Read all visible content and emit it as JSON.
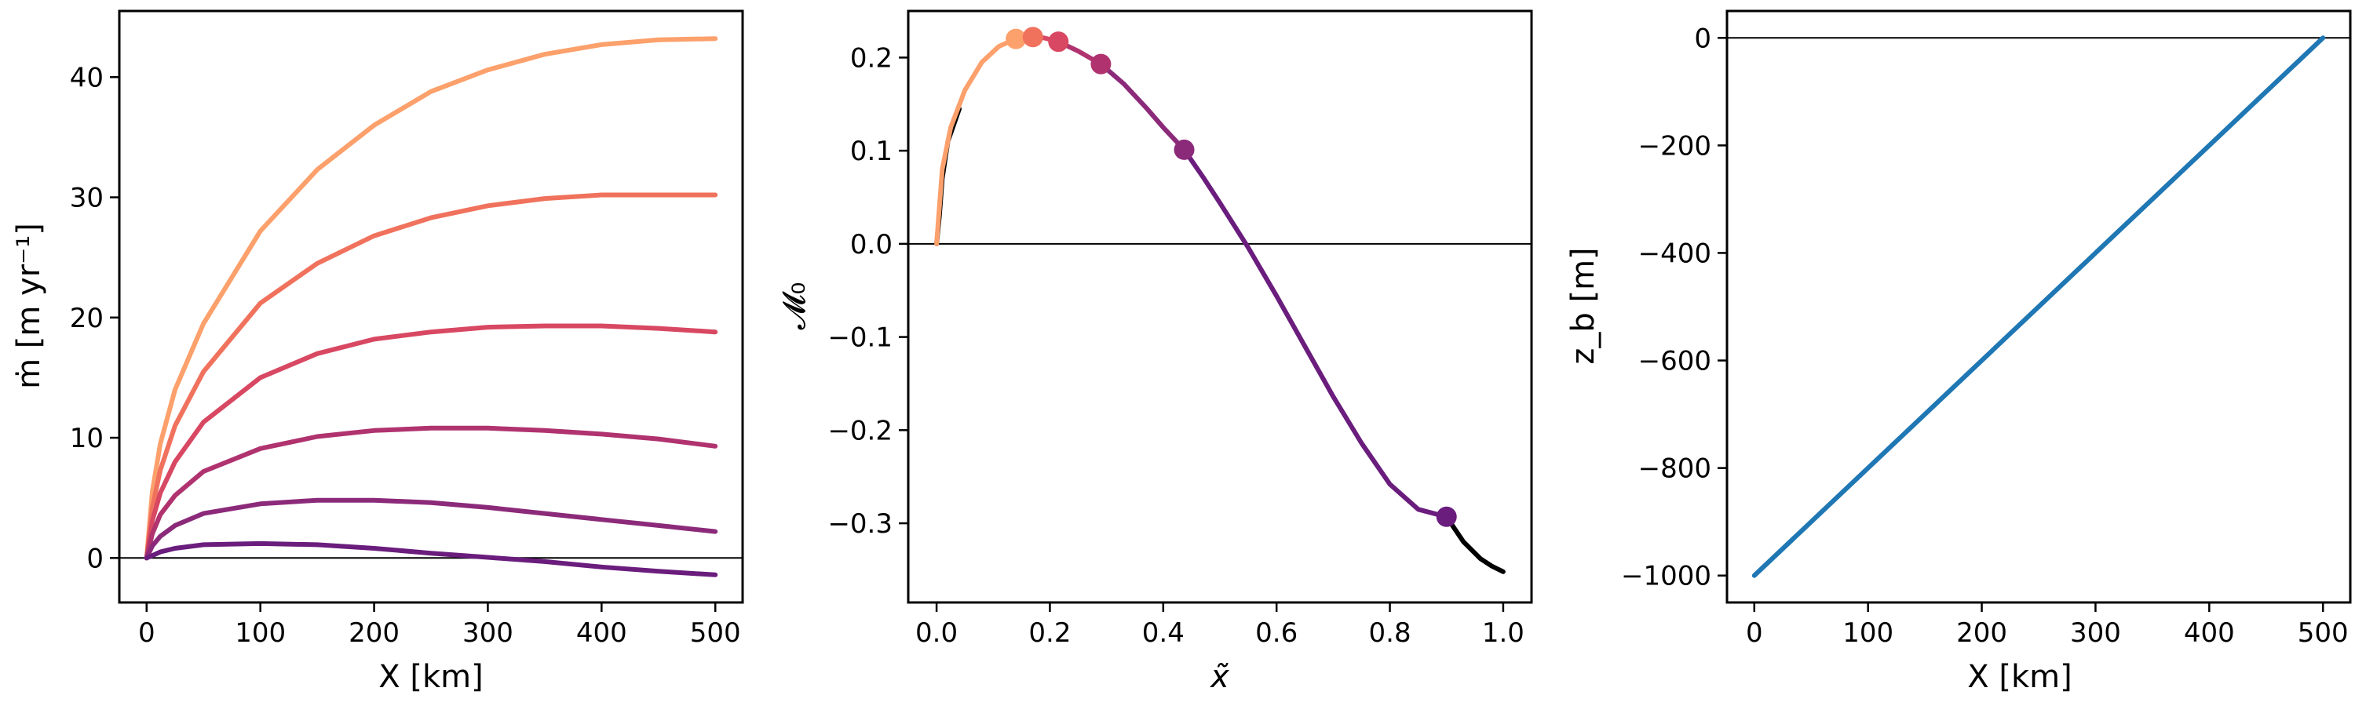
{
  "figure": {
    "background": "#ffffff"
  },
  "chart_data": [
    {
      "type": "line",
      "xlabel": "X [km]",
      "ylabel": "ṁ  [m yr⁻¹]",
      "xlim": [
        -24,
        524
      ],
      "ylim": [
        -3.7,
        45.5
      ],
      "xticks": [
        0,
        100,
        200,
        300,
        400,
        500
      ],
      "yticks": [
        0,
        10,
        20,
        30,
        40
      ],
      "xtick_labels": [
        "0",
        "100",
        "200",
        "300",
        "400",
        "500"
      ],
      "ytick_labels": [
        "0",
        "10",
        "20",
        "30",
        "40"
      ],
      "grid": false,
      "reference_lines": [
        {
          "axis": "y",
          "value": 0,
          "color": "#000000"
        }
      ],
      "series": [
        {
          "color": "#fca06c",
          "x": [
            0,
            5,
            12,
            25,
            50,
            100,
            150,
            200,
            250,
            300,
            350,
            400,
            450,
            500
          ],
          "y": [
            0,
            5.5,
            9.5,
            14,
            19.5,
            27.2,
            32.3,
            36,
            38.8,
            40.6,
            41.9,
            42.7,
            43.1,
            43.2
          ]
        },
        {
          "color": "#f0725d",
          "x": [
            0,
            5,
            12,
            25,
            50,
            100,
            150,
            200,
            250,
            300,
            350,
            400,
            450,
            500
          ],
          "y": [
            0,
            4.2,
            7.3,
            11,
            15.5,
            21.2,
            24.5,
            26.8,
            28.3,
            29.3,
            29.9,
            30.2,
            30.2,
            30.2
          ]
        },
        {
          "color": "#d84862",
          "x": [
            0,
            5,
            12,
            25,
            50,
            100,
            150,
            200,
            250,
            300,
            350,
            400,
            450,
            500
          ],
          "y": [
            0,
            3.1,
            5.4,
            8,
            11.3,
            15,
            17,
            18.2,
            18.8,
            19.2,
            19.3,
            19.3,
            19.1,
            18.8
          ]
        },
        {
          "color": "#b0336f",
          "x": [
            0,
            5,
            12,
            25,
            50,
            100,
            150,
            200,
            250,
            300,
            350,
            400,
            450,
            500
          ],
          "y": [
            0,
            2,
            3.6,
            5.2,
            7.2,
            9.1,
            10.1,
            10.6,
            10.8,
            10.8,
            10.6,
            10.3,
            9.9,
            9.3
          ]
        },
        {
          "color": "#8c2a7a",
          "x": [
            0,
            5,
            12,
            25,
            50,
            100,
            150,
            200,
            250,
            300,
            350,
            400,
            450,
            500
          ],
          "y": [
            0,
            1,
            1.8,
            2.7,
            3.7,
            4.5,
            4.8,
            4.8,
            4.6,
            4.2,
            3.7,
            3.2,
            2.7,
            2.2
          ]
        },
        {
          "color": "#6a1d7d",
          "x": [
            0,
            5,
            12,
            25,
            50,
            100,
            150,
            200,
            250,
            300,
            350,
            400,
            450,
            500
          ],
          "y": [
            0,
            0.2,
            0.5,
            0.8,
            1.1,
            1.2,
            1.1,
            0.8,
            0.4,
            0.05,
            -0.3,
            -0.75,
            -1.1,
            -1.4
          ]
        }
      ]
    },
    {
      "type": "line",
      "xlabel": "x̃",
      "ylabel": "𝓜₀",
      "xlim": [
        -0.05,
        1.05
      ],
      "ylim": [
        -0.385,
        0.25
      ],
      "xticks": [
        0.0,
        0.2,
        0.4,
        0.6,
        0.8,
        1.0
      ],
      "yticks": [
        -0.3,
        -0.2,
        -0.1,
        0.0,
        0.1,
        0.2
      ],
      "xtick_labels": [
        "0.0",
        "0.2",
        "0.4",
        "0.6",
        "0.8",
        "1.0"
      ],
      "ytick_labels": [
        "−0.3",
        "−0.2",
        "−0.1",
        "0.0",
        "0.1",
        "0.2"
      ],
      "grid": false,
      "reference_lines": [
        {
          "axis": "y",
          "value": 0,
          "color": "#000000"
        }
      ],
      "series": [
        {
          "color": "#000000",
          "x": [
            0,
            0.005,
            0.01,
            0.02,
            0.04
          ],
          "y": [
            0,
            0.03,
            0.07,
            0.11,
            0.145
          ]
        },
        {
          "color": "#fca06c",
          "x": [
            0,
            0.01,
            0.025,
            0.05,
            0.08,
            0.11,
            0.14
          ],
          "y": [
            0,
            0.08,
            0.125,
            0.165,
            0.195,
            0.212,
            0.22
          ]
        },
        {
          "color": "#f0725d",
          "x": [
            0.14,
            0.155,
            0.17
          ],
          "y": [
            0.22,
            0.222,
            0.222
          ]
        },
        {
          "color": "#d84862",
          "x": [
            0.17,
            0.19,
            0.215
          ],
          "y": [
            0.222,
            0.221,
            0.217
          ]
        },
        {
          "color": "#b0336f",
          "x": [
            0.215,
            0.25,
            0.29
          ],
          "y": [
            0.217,
            0.207,
            0.193
          ]
        },
        {
          "color": "#8c2a7a",
          "x": [
            0.29,
            0.33,
            0.37,
            0.4,
            0.437
          ],
          "y": [
            0.193,
            0.172,
            0.146,
            0.125,
            0.101
          ]
        },
        {
          "color": "#6a1d7d",
          "x": [
            0.437,
            0.47,
            0.5,
            0.55,
            0.6,
            0.65,
            0.7,
            0.75,
            0.8,
            0.85,
            0.9
          ],
          "y": [
            0.101,
            0.072,
            0.044,
            -0.004,
            -0.056,
            -0.11,
            -0.164,
            -0.214,
            -0.258,
            -0.285,
            -0.293
          ]
        },
        {
          "color": "#000000",
          "x": [
            0.9,
            0.93,
            0.96,
            0.98,
            1.0
          ],
          "y": [
            -0.293,
            -0.32,
            -0.338,
            -0.346,
            -0.352
          ]
        }
      ],
      "points": [
        {
          "x": 0.14,
          "y": 0.22,
          "color": "#fca06c"
        },
        {
          "x": 0.17,
          "y": 0.222,
          "color": "#f0725d"
        },
        {
          "x": 0.215,
          "y": 0.217,
          "color": "#d84862"
        },
        {
          "x": 0.29,
          "y": 0.193,
          "color": "#b0336f"
        },
        {
          "x": 0.437,
          "y": 0.101,
          "color": "#8c2a7a"
        },
        {
          "x": 0.9,
          "y": -0.293,
          "color": "#6a1d7d"
        }
      ]
    },
    {
      "type": "line",
      "xlabel": "X [km]",
      "ylabel": "z_b  [m]",
      "xlim": [
        -24,
        524
      ],
      "ylim": [
        -1050,
        50
      ],
      "xticks": [
        0,
        100,
        200,
        300,
        400,
        500
      ],
      "yticks": [
        0,
        -200,
        -400,
        -600,
        -800,
        -1000
      ],
      "xtick_labels": [
        "0",
        "100",
        "200",
        "300",
        "400",
        "500"
      ],
      "ytick_labels": [
        "0",
        "−200",
        "−400",
        "−600",
        "−800",
        "−1000"
      ],
      "grid": false,
      "reference_lines": [
        {
          "axis": "y",
          "value": 0,
          "color": "#000000"
        }
      ],
      "series": [
        {
          "color": "#1f77b4",
          "x": [
            0,
            500
          ],
          "y": [
            -1000,
            0
          ]
        }
      ]
    }
  ]
}
